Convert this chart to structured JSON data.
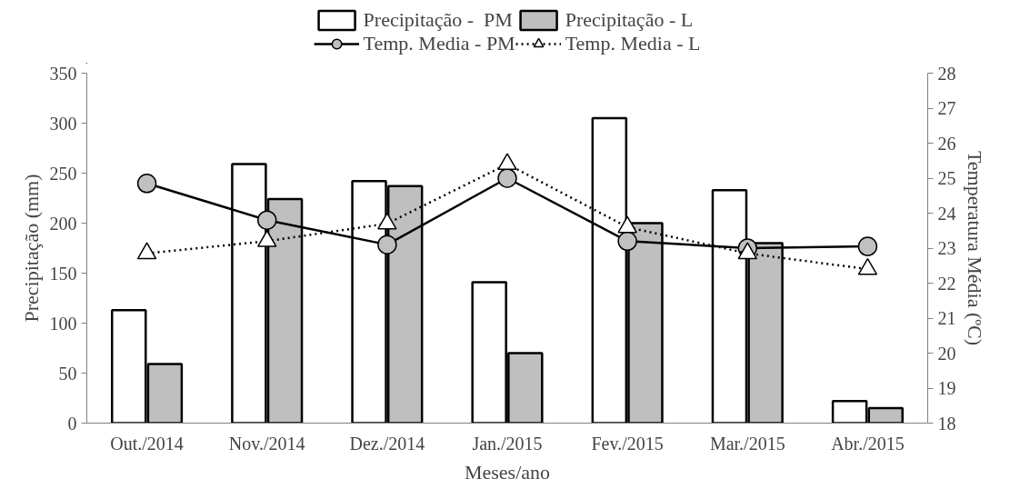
{
  "chart_data": {
    "type": "bar",
    "xlabel": "Meses/ano",
    "ylabel": "Precipitação (mm)",
    "y2label": "Temperatura Média (ºC)",
    "categories": [
      "Out./2014",
      "Nov./2014",
      "Dez./2014",
      "Jan./2015",
      "Fev./2015",
      "Mar./2015",
      "Abr./2015"
    ],
    "series": [
      {
        "name": "Precipitação -  PM",
        "color": "#ffffff",
        "values": [
          113,
          259,
          242,
          141,
          305,
          233,
          22
        ]
      },
      {
        "name": "Precipitação - L",
        "color": "#bfbfbf",
        "values": [
          59,
          224,
          237,
          70,
          200,
          180,
          15
        ]
      },
      {
        "name": "Temp. Media - PM",
        "type": "line",
        "axis": "y2",
        "color": "#000000",
        "marker": "circle",
        "line_style": "solid",
        "values": [
          24.85,
          23.8,
          23.1,
          25.0,
          23.2,
          23.0,
          23.05
        ]
      },
      {
        "name": "Temp. Media - L",
        "type": "line",
        "axis": "y2",
        "color": "#000000",
        "marker": "triangle",
        "line_style": "dotted",
        "values": [
          22.85,
          23.2,
          23.7,
          25.4,
          23.6,
          22.85,
          22.4
        ]
      }
    ],
    "ylim": [
      0,
      350
    ],
    "yticks": [
      0,
      50,
      100,
      150,
      200,
      250,
      300,
      350
    ],
    "y2lim": [
      18,
      28
    ],
    "y2ticks": [
      18,
      19,
      20,
      21,
      22,
      23,
      24,
      25,
      26,
      27,
      28
    ],
    "grid": false,
    "legend": "top"
  }
}
